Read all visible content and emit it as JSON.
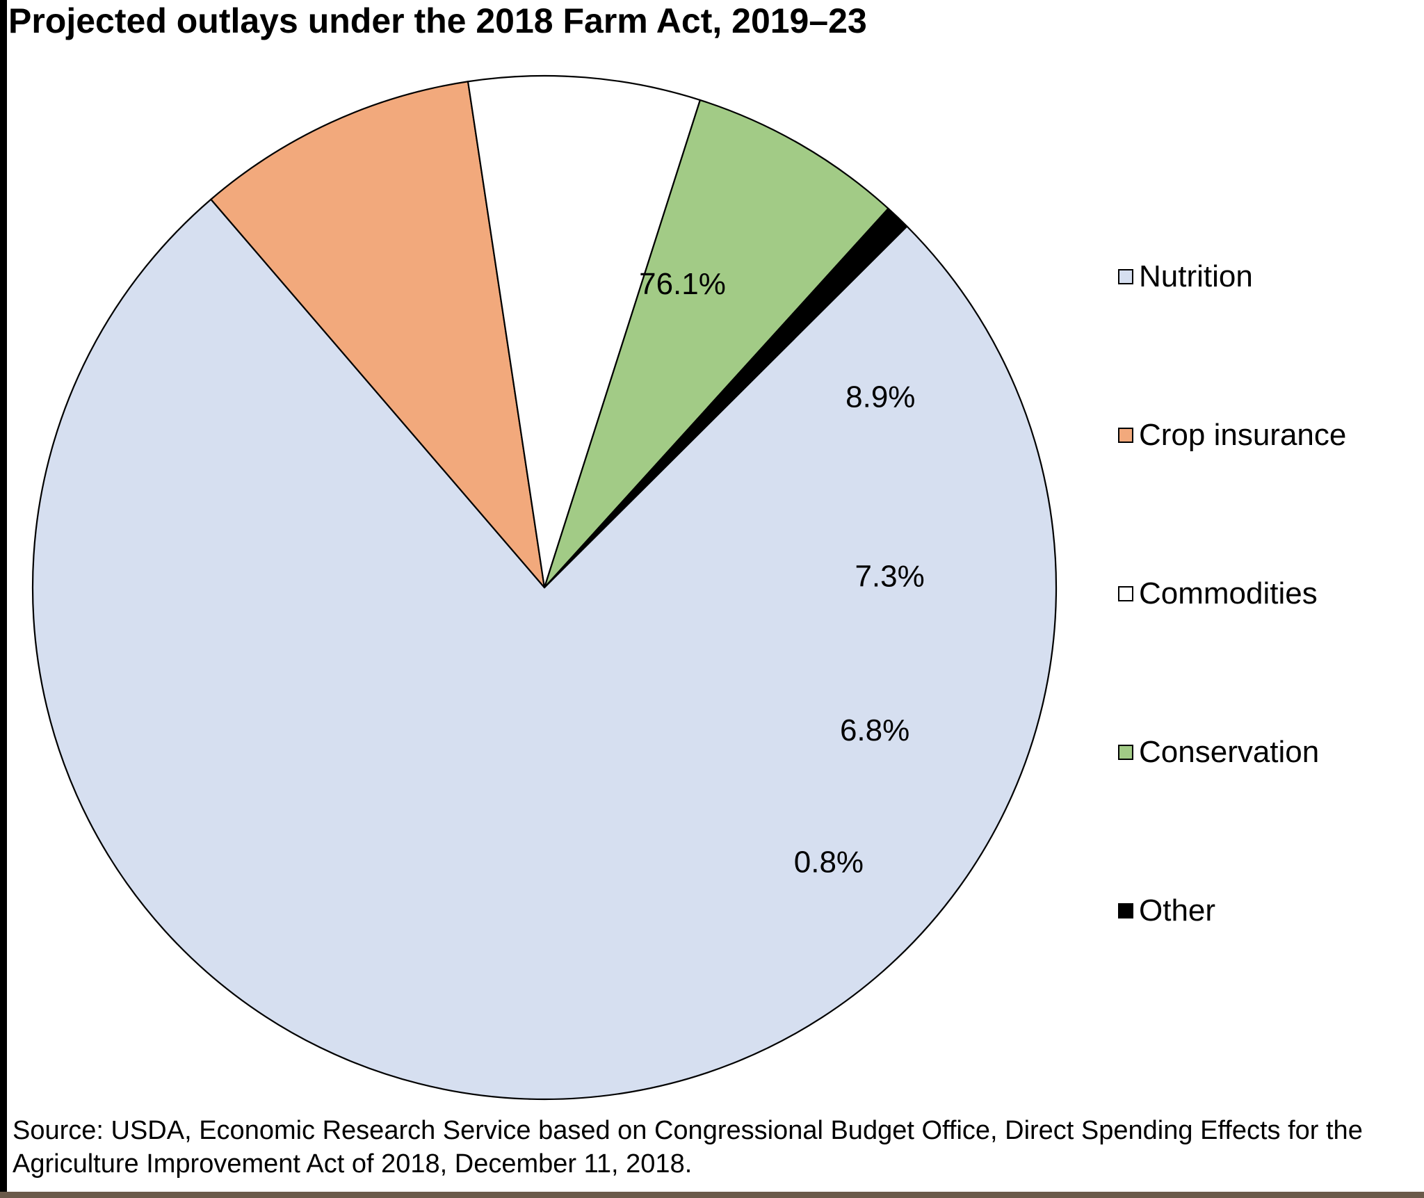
{
  "chart_data": {
    "type": "pie",
    "title": "Projected outlays under the 2018 Farm Act, 2019–23",
    "slices": [
      {
        "name": "Nutrition",
        "value": 76.1,
        "label": "76.1%",
        "color": "#d6dff0"
      },
      {
        "name": "Crop insurance",
        "value": 8.9,
        "label": "8.9%",
        "color": "#f2a97c"
      },
      {
        "name": "Commodities",
        "value": 7.3,
        "label": "7.3%",
        "color": "#ffffff"
      },
      {
        "name": "Conservation",
        "value": 6.8,
        "label": "6.8%",
        "color": "#a2cb86"
      },
      {
        "name": "Other",
        "value": 0.8,
        "label": "0.8%",
        "color": "#000000"
      }
    ],
    "legend_position": "right",
    "source": "Source: USDA, Economic Research Service based on Congressional Budget Office, Direct Spending Effects for the Agriculture Improvement Act of 2018, December 11, 2018."
  }
}
